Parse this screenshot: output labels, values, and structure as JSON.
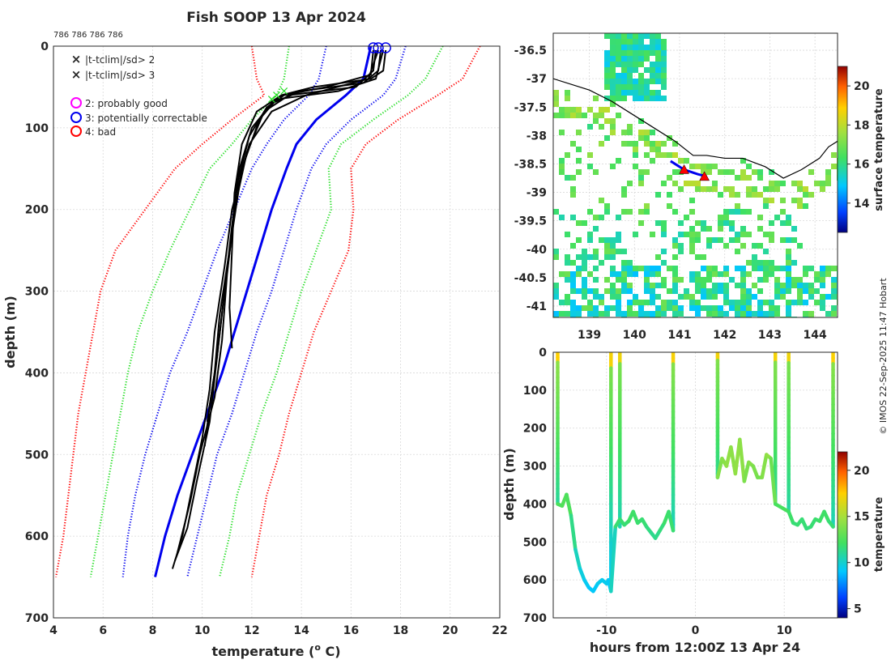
{
  "title": "Fish SOOP 13 Apr 2024",
  "id_line": "786 786 786 786",
  "credit": "© IMOS 22-Sep-2025 11:47 Hobart",
  "colors": {
    "red": "#ff0000",
    "green": "#22dd22",
    "blue": "#0000ee",
    "black": "#000000",
    "magenta": "#ff00ff"
  },
  "legend": {
    "items": [
      {
        "marker": "x",
        "color": "#22dd22",
        "label": "|t-tclim|/sd> 2"
      },
      {
        "marker": "x",
        "color": "#ff0000",
        "label": "|t-tclim|/sd> 3"
      },
      {
        "marker": "o",
        "color": "#ff00ff",
        "label": "2: probably good"
      },
      {
        "marker": "o",
        "color": "#0000ee",
        "label": "3: potentially correctable"
      },
      {
        "marker": "o",
        "color": "#ff0000",
        "label": "4: bad"
      }
    ]
  },
  "chart_data": [
    {
      "type": "line",
      "title": "Fish SOOP 13 Apr 2024",
      "xlabel": "temperature (° C)",
      "xlabel_main": "temperature (",
      "xlabel_sup": "o",
      "xlabel_end": " C)",
      "ylabel": "depth (m)",
      "xlim": [
        4,
        22
      ],
      "ylim": [
        700,
        0
      ],
      "xticks": [
        4,
        6,
        8,
        10,
        12,
        14,
        16,
        18,
        20,
        22
      ],
      "yticks": [
        0,
        100,
        200,
        300,
        400,
        500,
        600,
        700
      ],
      "grid": true,
      "climatology": {
        "depth": [
          0,
          40,
          60,
          90,
          120,
          150,
          200,
          250,
          300,
          350,
          400,
          450,
          500,
          550,
          600,
          650
        ],
        "minus3sd": [
          12,
          12.2,
          12.5,
          11.2,
          10,
          8.9,
          7.7,
          6.5,
          5.9,
          5.6,
          5.3,
          5.0,
          4.8,
          4.6,
          4.4,
          4.1
        ],
        "minus2sd": [
          13.5,
          13.3,
          13,
          12,
          11.2,
          10.3,
          9.5,
          8.7,
          8.0,
          7.4,
          7.0,
          6.7,
          6.4,
          6.1,
          5.8,
          5.5
        ],
        "minus1sd": [
          15,
          14.7,
          14.3,
          13.3,
          12.6,
          12.0,
          11.3,
          10.6,
          10.0,
          9.4,
          8.7,
          8.2,
          7.7,
          7.3,
          7.0,
          6.8
        ],
        "mean": [
          16.8,
          16.5,
          15.8,
          14.6,
          13.8,
          13.4,
          12.8,
          12.3,
          11.8,
          11.3,
          10.8,
          10.2,
          9.6,
          9.0,
          8.5,
          8.1
        ],
        "plus1sd": [
          18.2,
          17.8,
          17.3,
          16.0,
          15.0,
          14.4,
          13.8,
          13.3,
          12.8,
          12.2,
          11.7,
          11.2,
          10.6,
          10.2,
          9.8,
          9.4
        ],
        "plus2sd": [
          19.7,
          19.0,
          18.3,
          16.9,
          15.6,
          15.1,
          15.2,
          14.6,
          14.0,
          13.5,
          13.0,
          12.4,
          11.9,
          11.4,
          11.1,
          10.7
        ],
        "plus3sd": [
          21.2,
          20.5,
          19.5,
          17.9,
          16.6,
          16.0,
          16.1,
          15.9,
          15.2,
          14.5,
          14.0,
          13.5,
          13.1,
          12.6,
          12.3,
          12.0
        ]
      },
      "profiles": [
        {
          "depth": [
            5,
            30,
            40,
            50,
            60,
            80,
            120,
            180,
            250,
            320,
            370
          ],
          "temp": [
            17.4,
            17.3,
            16.8,
            14.5,
            13.2,
            12.2,
            11.6,
            11.3,
            11.2,
            11.1,
            11.2
          ]
        },
        {
          "depth": [
            5,
            30,
            45,
            55,
            70,
            100,
            150,
            220,
            300,
            380,
            440,
            490
          ],
          "temp": [
            17.2,
            17.1,
            16.5,
            14.0,
            12.8,
            12.0,
            11.5,
            11.2,
            10.9,
            10.6,
            10.3,
            10.1
          ]
        },
        {
          "depth": [
            5,
            30,
            50,
            60,
            80,
            130,
            200,
            280,
            360,
            430,
            500,
            560,
            620
          ],
          "temp": [
            17.0,
            16.9,
            16.2,
            13.5,
            12.5,
            11.8,
            11.3,
            11.0,
            10.8,
            10.5,
            9.9,
            9.5,
            9.0
          ]
        },
        {
          "depth": [
            5,
            40,
            55,
            65,
            90,
            150,
            230,
            300,
            380,
            460,
            530,
            590,
            630
          ],
          "temp": [
            17.3,
            17.0,
            15.5,
            13.0,
            12.3,
            11.6,
            11.2,
            10.9,
            10.6,
            10.3,
            9.8,
            9.4,
            8.9
          ]
        },
        {
          "depth": [
            5,
            35,
            50,
            60,
            75,
            110,
            170,
            250,
            330,
            400,
            460
          ],
          "temp": [
            16.9,
            16.8,
            15.0,
            13.3,
            12.6,
            11.9,
            11.4,
            11.1,
            10.7,
            10.5,
            10.2
          ]
        },
        {
          "depth": [
            5,
            40,
            60,
            80,
            120,
            200,
            270,
            350,
            420,
            480,
            540,
            600,
            640
          ],
          "temp": [
            17.1,
            16.7,
            14.2,
            12.8,
            11.9,
            11.2,
            10.9,
            10.5,
            10.3,
            10.0,
            9.6,
            9.2,
            8.8
          ]
        }
      ],
      "qc_flags": [
        {
          "flag": 3,
          "depth": 0,
          "temp": 17.4
        },
        {
          "flag": 3,
          "depth": 0,
          "temp": 17.1
        },
        {
          "flag": 3,
          "depth": 0,
          "temp": 16.9
        }
      ],
      "sd2_flag_points": [
        {
          "depth": 60,
          "temp": 13.0
        },
        {
          "depth": 65,
          "temp": 12.8
        },
        {
          "depth": 55,
          "temp": 13.3
        }
      ]
    },
    {
      "type": "heatmap",
      "title": "",
      "xlabel": "",
      "ylabel": "",
      "xlim": [
        138.2,
        144.5
      ],
      "ylim": [
        -41.2,
        -36.2
      ],
      "xticks": [
        139,
        140,
        141,
        142,
        143,
        144
      ],
      "yticks": [
        -36.5,
        -37,
        -37.5,
        -38,
        -38.5,
        -39,
        -39.5,
        -40,
        -40.5,
        -41
      ],
      "colorbar": {
        "label": "surface temperature",
        "range": [
          12.5,
          21
        ],
        "ticks": [
          14,
          16,
          18,
          20
        ]
      },
      "coast": [
        [
          138.2,
          -37.0
        ],
        [
          139.0,
          -37.2
        ],
        [
          139.5,
          -37.4
        ],
        [
          140.3,
          -37.8
        ],
        [
          140.9,
          -38.1
        ],
        [
          141.3,
          -38.35
        ],
        [
          141.6,
          -38.35
        ],
        [
          142.0,
          -38.4
        ],
        [
          142.4,
          -38.4
        ],
        [
          142.9,
          -38.55
        ],
        [
          143.3,
          -38.75
        ],
        [
          143.7,
          -38.6
        ],
        [
          144.1,
          -38.4
        ],
        [
          144.3,
          -38.2
        ],
        [
          144.5,
          -38.1
        ]
      ],
      "ship_track": [
        [
          140.8,
          -38.45
        ],
        [
          141.1,
          -38.6
        ],
        [
          141.4,
          -38.68
        ],
        [
          141.6,
          -38.72
        ]
      ],
      "markers": [
        {
          "lon": 141.1,
          "lat": -38.6,
          "color": "#ff0000"
        },
        {
          "lon": 141.55,
          "lat": -38.72,
          "color": "#ff0000"
        }
      ]
    },
    {
      "type": "line",
      "title": "",
      "xlabel": "hours from 12:00Z 13 Apr 24",
      "ylabel": "depth (m)",
      "xlim": [
        -16,
        16
      ],
      "ylim": [
        700,
        0
      ],
      "xticks": [
        -10,
        0,
        10
      ],
      "yticks": [
        0,
        100,
        200,
        300,
        400,
        500,
        600,
        700
      ],
      "colorbar": {
        "label": "temperature",
        "range": [
          4,
          22
        ],
        "ticks": [
          5,
          10,
          15,
          20
        ]
      },
      "casts": [
        {
          "t": -15.5,
          "bottom": 400,
          "temp_surface": 17.5,
          "temp_bottom": 11
        },
        {
          "t": -9.5,
          "bottom": 630,
          "temp_surface": 17.2,
          "temp_bottom": 9
        },
        {
          "t": -8.5,
          "bottom": 460,
          "temp_surface": 17.0,
          "temp_bottom": 10.5
        },
        {
          "t": -2.5,
          "bottom": 470,
          "temp_surface": 17.3,
          "temp_bottom": 10.3
        },
        {
          "t": 2.5,
          "bottom": 330,
          "temp_surface": 17.1,
          "temp_bottom": 11.2
        },
        {
          "t": 9.0,
          "bottom": 400,
          "temp_surface": 17.2,
          "temp_bottom": 11
        },
        {
          "t": 10.5,
          "bottom": 420,
          "temp_surface": 17.0,
          "temp_bottom": 10.8
        },
        {
          "t": 15.5,
          "bottom": 460,
          "temp_surface": 17.4,
          "temp_bottom": 10.4
        }
      ],
      "bottom_trace": {
        "t": [
          -15.5,
          -15,
          -14.5,
          -14,
          -13.5,
          -13,
          -12.5,
          -12,
          -11.5,
          -11,
          -10.5,
          -10,
          -9.8,
          -9.5,
          -9,
          -8.5,
          -8,
          -7.5,
          -7,
          -6.5,
          -6,
          -5.5,
          -5,
          -4.5,
          -4,
          -3.5,
          -3,
          -2.5,
          2.5,
          3,
          3.5,
          4,
          4.5,
          5,
          5.5,
          6,
          6.5,
          7,
          7.5,
          8,
          8.5,
          9,
          10.5,
          11,
          11.5,
          12,
          12.5,
          13,
          13.5,
          14,
          14.5,
          15,
          15.5
        ],
        "depth": [
          400,
          405,
          375,
          430,
          520,
          570,
          600,
          620,
          630,
          610,
          600,
          610,
          600,
          630,
          460,
          440,
          455,
          445,
          420,
          450,
          440,
          460,
          475,
          490,
          470,
          450,
          420,
          470,
          330,
          280,
          300,
          250,
          320,
          230,
          340,
          290,
          300,
          330,
          330,
          270,
          280,
          400,
          420,
          450,
          455,
          440,
          465,
          460,
          440,
          445,
          420,
          445,
          460
        ]
      }
    }
  ]
}
